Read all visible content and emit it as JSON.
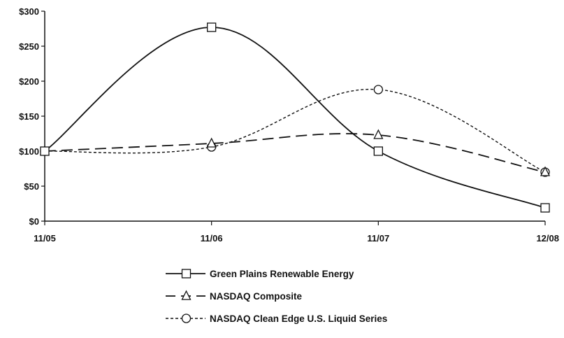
{
  "chart_data": {
    "type": "line",
    "title": "",
    "xlabel": "",
    "ylabel": "",
    "categories": [
      "11/05",
      "11/06",
      "11/07",
      "12/08"
    ],
    "y_ticks": [
      "$0",
      "$50",
      "$100",
      "$150",
      "$200",
      "$250",
      "$300"
    ],
    "ylim": [
      0,
      300
    ],
    "grid": false,
    "legend_position": "bottom",
    "series": [
      {
        "name": "Green Plains Renewable Energy",
        "values": [
          100,
          277,
          100,
          19
        ],
        "marker": "square",
        "dash": "solid",
        "color": "#111111"
      },
      {
        "name": "NASDAQ Composite",
        "values": [
          100,
          111,
          123,
          70
        ],
        "marker": "triangle",
        "dash": "long-dash",
        "color": "#111111"
      },
      {
        "name": "NASDAQ Clean Edge U.S. Liquid Series",
        "values": [
          100,
          106,
          188,
          70
        ],
        "marker": "circle",
        "dash": "short-dash",
        "color": "#111111"
      }
    ]
  }
}
